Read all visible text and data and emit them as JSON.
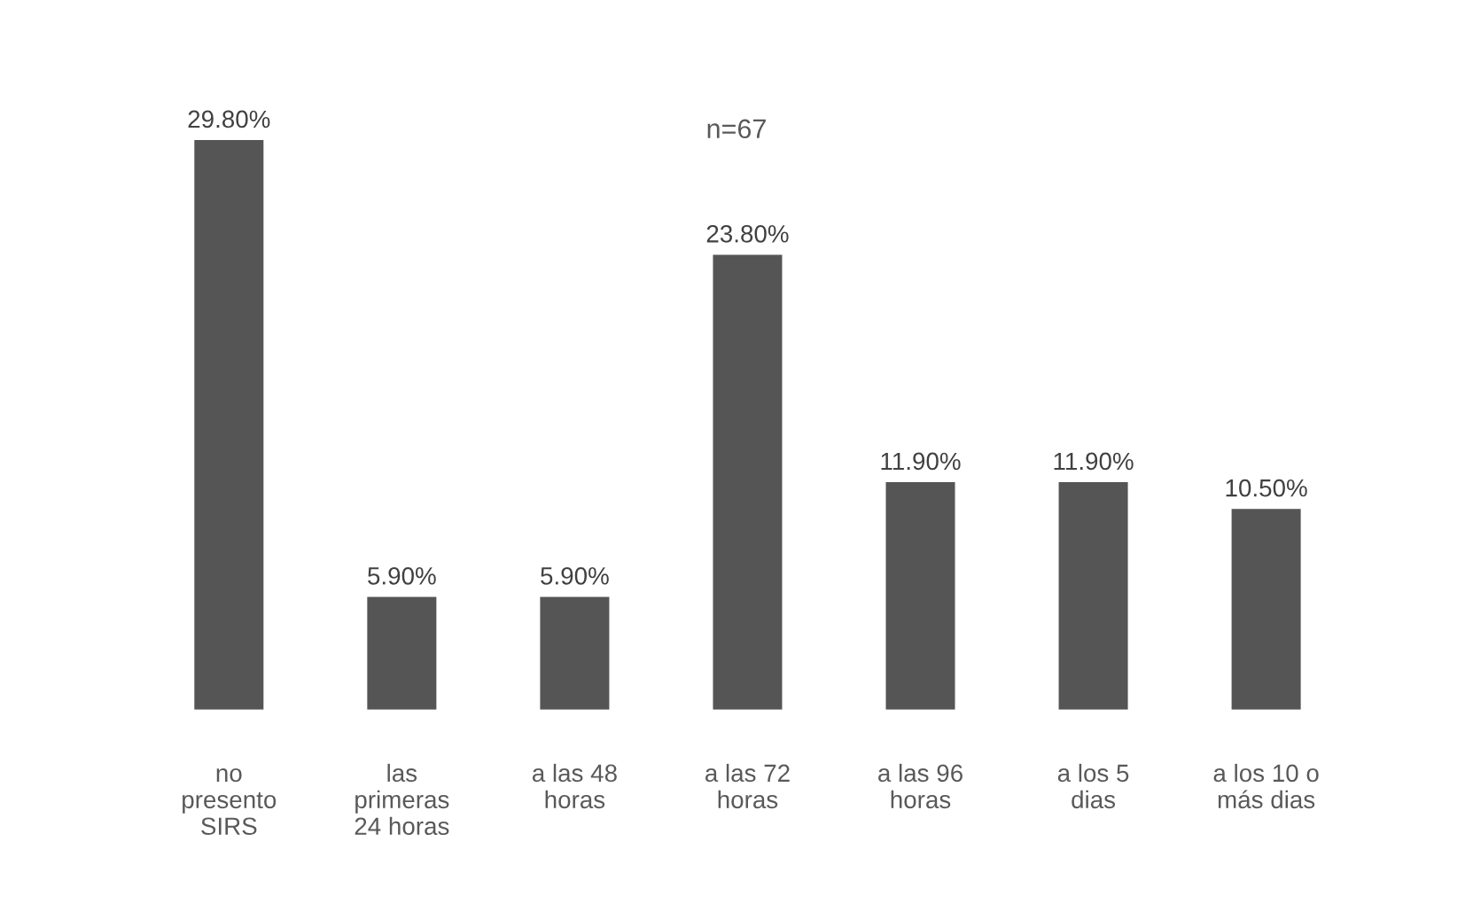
{
  "chart_data": {
    "type": "bar",
    "title": "n=67",
    "categories": [
      "no\npresento\nSIRS",
      "las\nprimeras\n24 horas",
      "a las 48\nhoras",
      "a las 72\nhoras",
      "a las 96\nhoras",
      "a los 5\ndias",
      "a los 10 o\nmás dias"
    ],
    "values": [
      29.8,
      5.9,
      5.9,
      23.8,
      11.9,
      11.9,
      10.5
    ],
    "value_labels": [
      "29.80%",
      "5.90%",
      "5.90%",
      "23.80%",
      "11.90%",
      "11.90%",
      "10.50%"
    ],
    "color": "#555555",
    "grid": false,
    "legend": false
  }
}
